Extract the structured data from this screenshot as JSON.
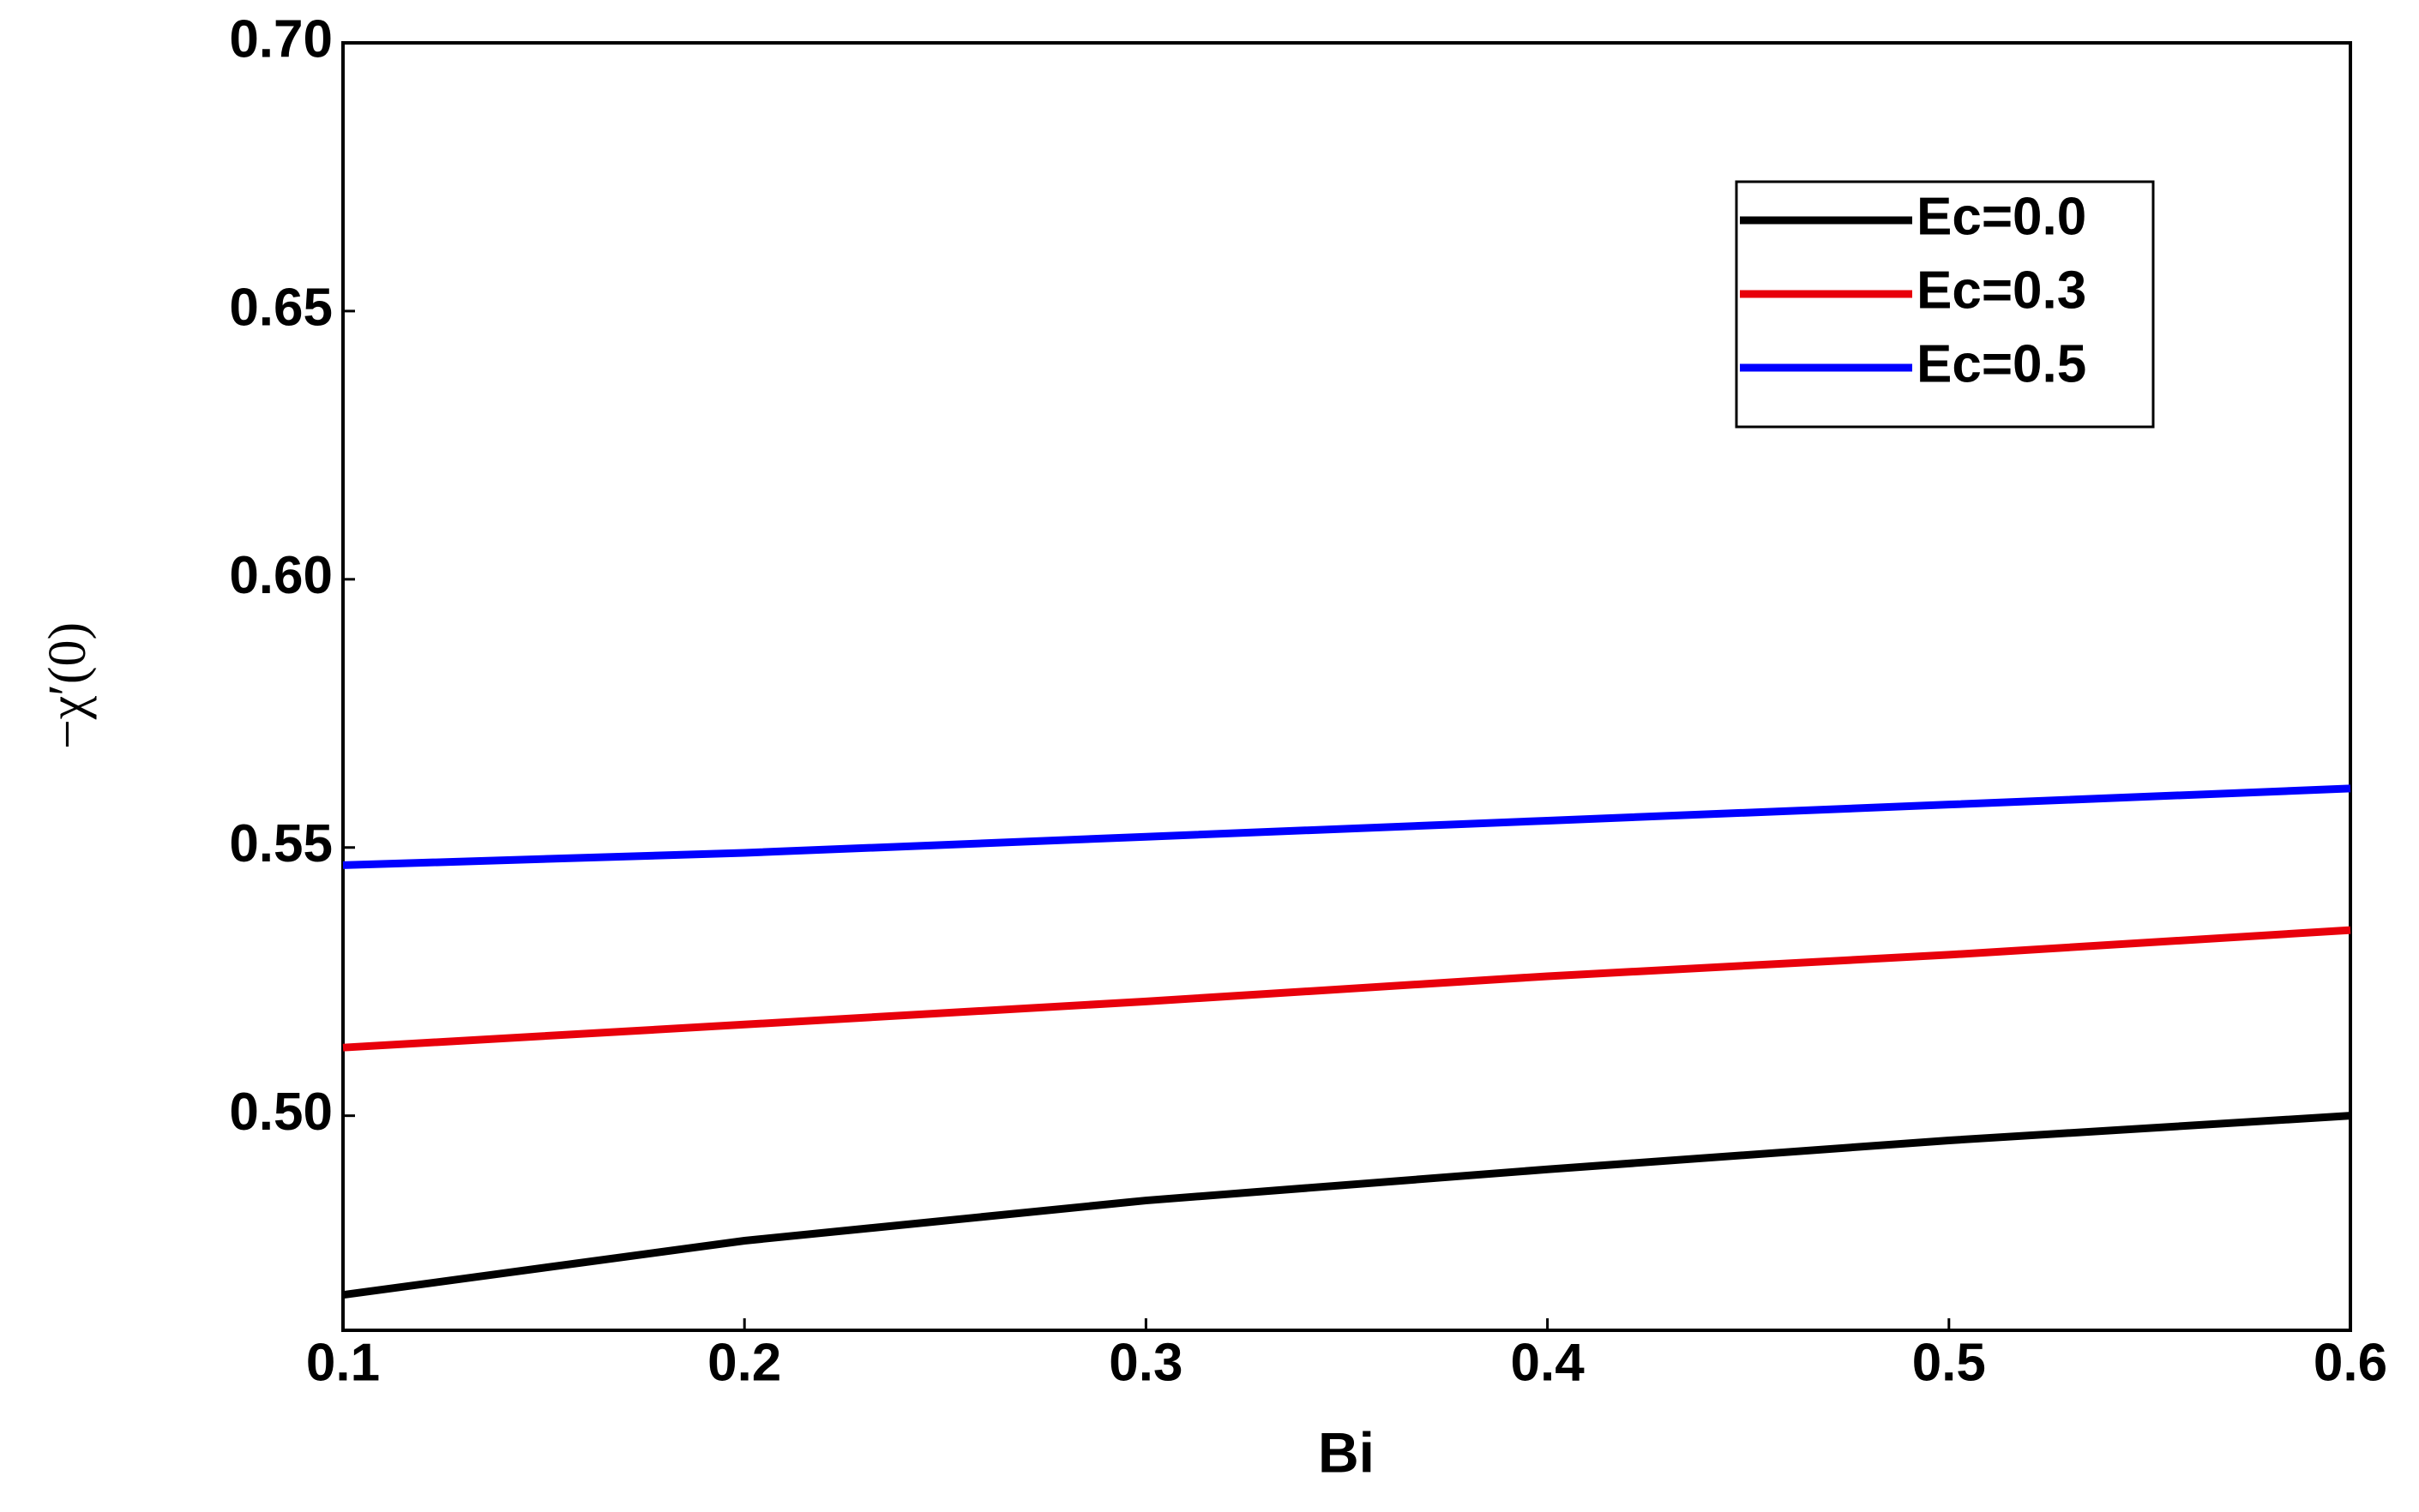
{
  "chart_data": {
    "type": "line",
    "x_label": "Bi",
    "y_label": "−χ′(0)",
    "x": [
      0.1,
      0.2,
      0.3,
      0.4,
      0.5,
      0.6
    ],
    "series": [
      {
        "name": "Ec=0.0",
        "color": "#000000",
        "values": [
          0.4666,
          0.4767,
          0.4842,
          0.49,
          0.4954,
          0.5
        ]
      },
      {
        "name": "Ec=0.3",
        "color": "#e8000b",
        "values": [
          0.5127,
          0.517,
          0.5213,
          0.526,
          0.53,
          0.5346
        ]
      },
      {
        "name": "Ec=0.5",
        "color": "#0000ff",
        "values": [
          0.5467,
          0.549,
          0.552,
          0.555,
          0.558,
          0.561
        ]
      }
    ],
    "xlim": [
      0.1,
      0.6
    ],
    "xticks": [
      0.1,
      0.2,
      0.3,
      0.4,
      0.5,
      0.6
    ],
    "ylim": [
      0.46,
      0.7
    ],
    "yticks": [
      {
        "value": 0.5,
        "label": "0.50"
      },
      {
        "value": 0.55,
        "label": "0.55"
      },
      {
        "value": 0.6,
        "label": "0.60"
      },
      {
        "value": 0.65,
        "label": "0.65"
      },
      {
        "value": 0.7,
        "label": "0.70"
      }
    ],
    "legend": "upper right",
    "grid": false
  }
}
